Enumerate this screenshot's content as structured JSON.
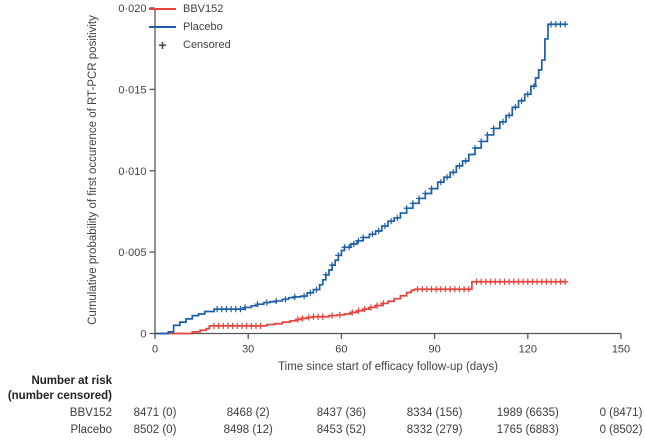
{
  "figure": {
    "background": "#ffffff",
    "axis_color": "#55565a"
  },
  "legend": {
    "plus_glyph": "+",
    "items": [
      {
        "label": "BBV152",
        "swatch": "line",
        "color": "#e8423d"
      },
      {
        "label": "Placebo",
        "swatch": "line",
        "color": "#1d5ea8"
      },
      {
        "label": "Censored",
        "swatch": "plus",
        "color": "#47484a"
      }
    ]
  },
  "y_axis": {
    "label": "Cumulative probability of first occurence of RT-PCR positivity",
    "range": [
      0,
      0.02
    ],
    "ticks": [
      {
        "value": 0.02,
        "label": "0·020"
      },
      {
        "value": 0.015,
        "label": "0·015"
      },
      {
        "value": 0.01,
        "label": "0·010"
      },
      {
        "value": 0.005,
        "label": "0·005"
      },
      {
        "value": 0,
        "label": "0"
      }
    ]
  },
  "x_axis": {
    "label": "Time since start of efficacy follow-up (days)",
    "range": [
      0,
      150
    ],
    "ticks": [
      {
        "value": 0,
        "label": "0"
      },
      {
        "value": 30,
        "label": "30"
      },
      {
        "value": 60,
        "label": "60"
      },
      {
        "value": 90,
        "label": "90"
      },
      {
        "value": 120,
        "label": "120"
      },
      {
        "value": 150,
        "label": "150"
      }
    ]
  },
  "chart_data": {
    "type": "line",
    "subtype": "kaplan-meier-step",
    "title": "",
    "xlabel": "Time since start of efficacy follow-up (days)",
    "ylabel": "Cumulative probability of first occurence of RT-PCR positivity",
    "xlim": [
      0,
      150
    ],
    "ylim": [
      0,
      0.02
    ],
    "grid": false,
    "legend_position": "top-left-inside",
    "series": [
      {
        "name": "BBV152",
        "color": "#e8423d",
        "end_day": 132.6,
        "points": [
          [
            0,
            0
          ],
          [
            12,
            0.0001
          ],
          [
            14.5,
            0.0002
          ],
          [
            16.5,
            0.0003
          ],
          [
            17.5,
            0.00047
          ],
          [
            36,
            0.00055
          ],
          [
            38.5,
            0.0006
          ],
          [
            41,
            0.0007
          ],
          [
            43.5,
            0.00078
          ],
          [
            45.5,
            0.00086
          ],
          [
            47,
            0.00093
          ],
          [
            49,
            0.00099
          ],
          [
            51,
            0.00103
          ],
          [
            56,
            0.0011
          ],
          [
            58.5,
            0.00114
          ],
          [
            61,
            0.0012
          ],
          [
            63,
            0.0013
          ],
          [
            65,
            0.0014
          ],
          [
            67,
            0.0015
          ],
          [
            69,
            0.0016
          ],
          [
            71,
            0.00172
          ],
          [
            73,
            0.00185
          ],
          [
            75,
            0.00198
          ],
          [
            77,
            0.00214
          ],
          [
            79,
            0.00232
          ],
          [
            81,
            0.00252
          ],
          [
            82.5,
            0.00265
          ],
          [
            83.5,
            0.00272
          ],
          [
            102,
            0.00318
          ]
        ],
        "censor_days": [
          19,
          20.5,
          22,
          23.5,
          25,
          26.5,
          28,
          29.5,
          31,
          32.5,
          34,
          46,
          47.5,
          49.5,
          51,
          52.5,
          54,
          57,
          59.5,
          63.5,
          65.5,
          67.5,
          69.5,
          71.5,
          73.5,
          84.5,
          86,
          87.5,
          89,
          90.5,
          92,
          93.5,
          95,
          96.5,
          98,
          99.5,
          101,
          103.5,
          105,
          106.5,
          108,
          109.5,
          111,
          112.5,
          114,
          115.5,
          117,
          118.5,
          120,
          121.5,
          123,
          124.5,
          126,
          127.5,
          129,
          130.5,
          132
        ]
      },
      {
        "name": "Placebo",
        "color": "#1d5ea8",
        "end_day": 132.6,
        "points": [
          [
            0,
            0
          ],
          [
            4.3,
            0.0001
          ],
          [
            6,
            0.0005
          ],
          [
            8,
            0.0007
          ],
          [
            10,
            0.0009
          ],
          [
            12,
            0.0011
          ],
          [
            14,
            0.0012
          ],
          [
            16,
            0.00135
          ],
          [
            19,
            0.0015
          ],
          [
            29,
            0.0016
          ],
          [
            31,
            0.0017
          ],
          [
            33,
            0.0018
          ],
          [
            35,
            0.0019
          ],
          [
            37,
            0.00195
          ],
          [
            39,
            0.002
          ],
          [
            41,
            0.0021
          ],
          [
            43,
            0.0022
          ],
          [
            45,
            0.00225
          ],
          [
            47,
            0.0023
          ],
          [
            49,
            0.0025
          ],
          [
            51,
            0.0027
          ],
          [
            53,
            0.003
          ],
          [
            54,
            0.0033
          ],
          [
            55,
            0.0036
          ],
          [
            56,
            0.0039
          ],
          [
            57,
            0.0042
          ],
          [
            58,
            0.0045
          ],
          [
            59,
            0.0048
          ],
          [
            60,
            0.0051
          ],
          [
            61,
            0.0053
          ],
          [
            63,
            0.0055
          ],
          [
            65,
            0.0057
          ],
          [
            67,
            0.0059
          ],
          [
            69,
            0.0061
          ],
          [
            71,
            0.0063
          ],
          [
            73,
            0.0066
          ],
          [
            75,
            0.0069
          ],
          [
            77,
            0.0071
          ],
          [
            79,
            0.0074
          ],
          [
            81,
            0.0077
          ],
          [
            83,
            0.008
          ],
          [
            85,
            0.0083
          ],
          [
            87,
            0.0086
          ],
          [
            89,
            0.0089
          ],
          [
            91,
            0.0093
          ],
          [
            93,
            0.0096
          ],
          [
            95,
            0.0099
          ],
          [
            97,
            0.0103
          ],
          [
            99,
            0.0106
          ],
          [
            101,
            0.011
          ],
          [
            103,
            0.0114
          ],
          [
            105,
            0.0118
          ],
          [
            107,
            0.0122
          ],
          [
            109,
            0.0126
          ],
          [
            111,
            0.013
          ],
          [
            113,
            0.0134
          ],
          [
            115,
            0.0139
          ],
          [
            117,
            0.0143
          ],
          [
            119,
            0.0147
          ],
          [
            121,
            0.0152
          ],
          [
            122.5,
            0.0157
          ],
          [
            123.5,
            0.0162
          ],
          [
            124.5,
            0.0168
          ],
          [
            125.5,
            0.0181
          ],
          [
            126.5,
            0.019
          ]
        ],
        "censor_days": [
          20,
          21.5,
          23,
          24.5,
          26,
          27.5,
          29,
          33,
          36,
          39,
          42,
          45,
          48,
          50,
          52,
          55,
          57,
          59,
          61,
          62.5,
          64,
          65.5,
          67,
          70,
          72,
          74,
          76,
          78,
          81,
          83,
          85,
          87,
          89,
          92,
          94,
          96,
          98,
          100,
          103,
          105,
          107,
          109,
          112,
          114,
          116,
          118,
          120,
          122,
          127.5,
          129,
          130.5,
          132
        ]
      }
    ]
  },
  "risk_table": {
    "title_lines": [
      "Number at risk",
      "(number censored)"
    ],
    "columns": [
      0,
      30,
      60,
      90,
      120,
      150
    ],
    "rows": [
      {
        "label": "BBV152",
        "values": [
          "8471 (0)",
          "8468 (2)",
          "8437 (36)",
          "8334 (156)",
          "1989 (6635)",
          "0 (8471)"
        ]
      },
      {
        "label": "Placebo",
        "values": [
          "8502 (0)",
          "8498 (12)",
          "8453 (52)",
          "8332 (279)",
          "1765 (6883)",
          "0 (8502)"
        ]
      }
    ]
  }
}
